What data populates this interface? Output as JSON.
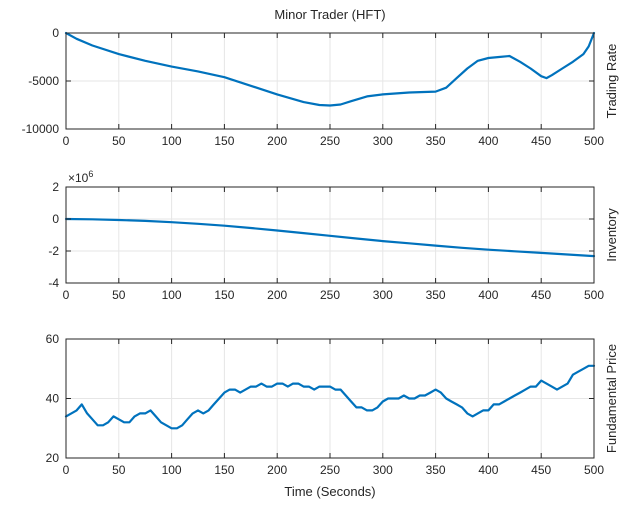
{
  "figure": {
    "title": "Minor Trader (HFT)",
    "xlabel": "Time (Seconds)",
    "line_color": "#0072BD"
  },
  "chart_data": [
    {
      "type": "line",
      "title": "Minor Trader (HFT)",
      "xlabel": "",
      "ylabel": "Trading Rate",
      "xlim": [
        0,
        500
      ],
      "ylim": [
        -10000,
        0
      ],
      "xticks": [
        0,
        50,
        100,
        150,
        200,
        250,
        300,
        350,
        400,
        450,
        500
      ],
      "xtick_labels": [
        "0",
        "50",
        "100",
        "150",
        "200",
        "250",
        "300",
        "350",
        "400",
        "450",
        "500"
      ],
      "yticks": [
        -10000,
        -5000,
        0
      ],
      "ytick_labels": [
        "-10000",
        "-5000",
        "0"
      ],
      "grid": true,
      "series": [
        {
          "color": "#0072BD",
          "x": [
            0,
            10,
            25,
            50,
            75,
            100,
            125,
            150,
            175,
            200,
            225,
            240,
            250,
            260,
            270,
            285,
            300,
            325,
            350,
            360,
            370,
            380,
            390,
            400,
            410,
            420,
            430,
            440,
            450,
            455,
            460,
            470,
            480,
            490,
            495,
            500
          ],
          "y": [
            0,
            -600,
            -1300,
            -2200,
            -2900,
            -3500,
            -4000,
            -4600,
            -5500,
            -6400,
            -7200,
            -7500,
            -7550,
            -7450,
            -7100,
            -6600,
            -6400,
            -6200,
            -6100,
            -5700,
            -4700,
            -3700,
            -2900,
            -2600,
            -2500,
            -2400,
            -3000,
            -3700,
            -4500,
            -4700,
            -4400,
            -3700,
            -3000,
            -2200,
            -1400,
            0
          ]
        }
      ]
    },
    {
      "type": "line",
      "title": "",
      "xlabel": "",
      "ylabel": "Inventory",
      "y_exponent_label": "×10^6",
      "xlim": [
        0,
        500
      ],
      "ylim": [
        -4,
        2
      ],
      "xticks": [
        0,
        50,
        100,
        150,
        200,
        250,
        300,
        350,
        400,
        450,
        500
      ],
      "xtick_labels": [
        "0",
        "50",
        "100",
        "150",
        "200",
        "250",
        "300",
        "350",
        "400",
        "450",
        "500"
      ],
      "yticks": [
        -4,
        -2,
        0,
        2
      ],
      "ytick_labels": [
        "-4",
        "-2",
        "0",
        "2"
      ],
      "grid": true,
      "series": [
        {
          "color": "#0072BD",
          "x": [
            0,
            25,
            50,
            75,
            100,
            125,
            150,
            175,
            200,
            225,
            250,
            275,
            300,
            325,
            350,
            375,
            400,
            425,
            450,
            475,
            500
          ],
          "y": [
            0,
            -0.02,
            -0.06,
            -0.12,
            -0.2,
            -0.3,
            -0.42,
            -0.56,
            -0.72,
            -0.88,
            -1.05,
            -1.22,
            -1.38,
            -1.52,
            -1.66,
            -1.8,
            -1.92,
            -2.02,
            -2.12,
            -2.22,
            -2.32
          ]
        }
      ]
    },
    {
      "type": "line",
      "title": "",
      "xlabel": "Time (Seconds)",
      "ylabel": "Fundamental Price",
      "xlim": [
        0,
        500
      ],
      "ylim": [
        20,
        60
      ],
      "xticks": [
        0,
        50,
        100,
        150,
        200,
        250,
        300,
        350,
        400,
        450,
        500
      ],
      "xtick_labels": [
        "0",
        "50",
        "100",
        "150",
        "200",
        "250",
        "300",
        "350",
        "400",
        "450",
        "500"
      ],
      "yticks": [
        20,
        40,
        60
      ],
      "ytick_labels": [
        "20",
        "40",
        "60"
      ],
      "grid": true,
      "series": [
        {
          "color": "#0072BD",
          "x": [
            0,
            5,
            10,
            15,
            20,
            25,
            30,
            35,
            40,
            45,
            50,
            55,
            60,
            65,
            70,
            75,
            80,
            85,
            90,
            95,
            100,
            105,
            110,
            115,
            120,
            125,
            130,
            135,
            140,
            145,
            150,
            155,
            160,
            165,
            170,
            175,
            180,
            185,
            190,
            195,
            200,
            205,
            210,
            215,
            220,
            225,
            230,
            235,
            240,
            245,
            250,
            255,
            260,
            265,
            270,
            275,
            280,
            285,
            290,
            295,
            300,
            305,
            310,
            315,
            320,
            325,
            330,
            335,
            340,
            345,
            350,
            355,
            360,
            365,
            370,
            375,
            380,
            385,
            390,
            395,
            400,
            405,
            410,
            415,
            420,
            425,
            430,
            435,
            440,
            445,
            450,
            455,
            460,
            465,
            470,
            475,
            480,
            485,
            490,
            495,
            500
          ],
          "y": [
            34,
            35,
            36,
            38,
            35,
            33,
            31,
            31,
            32,
            34,
            33,
            32,
            32,
            34,
            35,
            35,
            36,
            34,
            32,
            31,
            30,
            30,
            31,
            33,
            35,
            36,
            35,
            36,
            38,
            40,
            42,
            43,
            43,
            42,
            43,
            44,
            44,
            45,
            44,
            44,
            45,
            45,
            44,
            45,
            45,
            44,
            44,
            43,
            44,
            44,
            44,
            43,
            43,
            41,
            39,
            37,
            37,
            36,
            36,
            37,
            39,
            40,
            40,
            40,
            41,
            40,
            40,
            41,
            41,
            42,
            43,
            42,
            40,
            39,
            38,
            37,
            35,
            34,
            35,
            36,
            36,
            38,
            38,
            39,
            40,
            41,
            42,
            43,
            44,
            44,
            46,
            45,
            44,
            43,
            44,
            45,
            48,
            49,
            50,
            51,
            51
          ]
        }
      ]
    }
  ]
}
